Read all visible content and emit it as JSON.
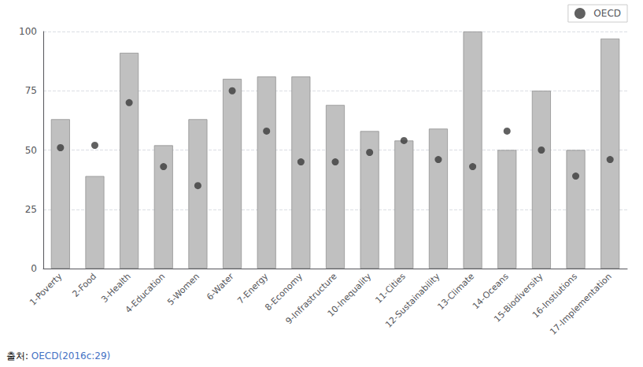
{
  "chart_data": {
    "type": "bar",
    "categories": [
      "1-Poverty",
      "2-Food",
      "3-Health",
      "4-Education",
      "5-Women",
      "6-Water",
      "7-Energy",
      "8-Economy",
      "9-Infrastructure",
      "10-Inequality",
      "11-Cities",
      "12-Sustainability",
      "13-Climate",
      "14-Oceans",
      "15-Biodiversity",
      "16-Instiutions",
      "17-Implementation"
    ],
    "series": [
      {
        "type": "bar",
        "color": "#c0c0c0",
        "values": [
          63,
          39,
          91,
          52,
          63,
          80,
          81,
          81,
          69,
          58,
          54,
          59,
          100,
          50,
          75,
          50,
          97
        ]
      },
      {
        "name": "OECD",
        "type": "scatter",
        "color": "#3a3a3a",
        "marker": "circle",
        "values": [
          51,
          52,
          70,
          43,
          35,
          75,
          58,
          45,
          45,
          49,
          54,
          46,
          43,
          58,
          50,
          39,
          46
        ]
      }
    ],
    "ylim": [
      0,
      100
    ],
    "yticks": [
      0,
      25,
      50,
      75,
      100
    ],
    "grid": true,
    "legend": "upper right",
    "annotations": [
      {
        "text": "출처: ",
        "color": "#000000"
      },
      {
        "text": "OECD(2016c:29)",
        "color": "#4472c4"
      }
    ]
  }
}
